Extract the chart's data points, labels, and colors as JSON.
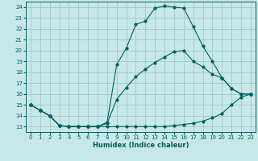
{
  "xlabel": "Humidex (Indice chaleur)",
  "bg_color": "#c8e8e8",
  "grid_color": "#a0c8c8",
  "line_color": "#006060",
  "xlim": [
    -0.5,
    23.5
  ],
  "ylim": [
    12.5,
    24.5
  ],
  "xticks": [
    0,
    1,
    2,
    3,
    4,
    5,
    6,
    7,
    8,
    9,
    10,
    11,
    12,
    13,
    14,
    15,
    16,
    17,
    18,
    19,
    20,
    21,
    22,
    23
  ],
  "yticks": [
    13,
    14,
    15,
    16,
    17,
    18,
    19,
    20,
    21,
    22,
    23,
    24
  ],
  "line1_x": [
    0,
    1,
    2,
    3,
    4,
    5,
    6,
    7,
    8,
    9,
    10,
    11,
    12,
    13,
    14,
    15,
    16,
    17,
    18,
    19,
    20,
    21,
    22,
    23
  ],
  "line1_y": [
    15.0,
    14.5,
    14.0,
    13.1,
    13.0,
    13.0,
    13.0,
    13.0,
    13.0,
    13.0,
    13.0,
    13.0,
    13.0,
    13.0,
    13.0,
    13.1,
    13.2,
    13.3,
    13.5,
    13.8,
    14.2,
    15.0,
    15.7,
    16.0
  ],
  "line2_x": [
    0,
    1,
    2,
    3,
    4,
    5,
    6,
    7,
    8,
    9,
    10,
    11,
    12,
    13,
    14,
    15,
    16,
    17,
    18,
    19,
    20,
    21,
    22,
    23
  ],
  "line2_y": [
    15.0,
    14.5,
    14.0,
    13.1,
    13.0,
    13.0,
    13.0,
    13.0,
    13.4,
    18.7,
    20.2,
    22.4,
    22.7,
    23.9,
    24.1,
    24.0,
    23.9,
    22.2,
    20.4,
    19.0,
    17.5,
    16.5,
    16.0,
    16.0
  ],
  "line3_x": [
    0,
    1,
    2,
    3,
    4,
    5,
    6,
    7,
    8,
    9,
    10,
    11,
    12,
    13,
    14,
    15,
    16,
    17,
    18,
    19,
    20,
    21,
    22,
    23
  ],
  "line3_y": [
    15.0,
    14.5,
    14.0,
    13.1,
    13.0,
    13.0,
    13.0,
    13.0,
    13.3,
    15.5,
    16.6,
    17.6,
    18.3,
    18.9,
    19.4,
    19.9,
    20.0,
    19.0,
    18.5,
    17.8,
    17.5,
    16.5,
    16.0,
    16.0
  ]
}
